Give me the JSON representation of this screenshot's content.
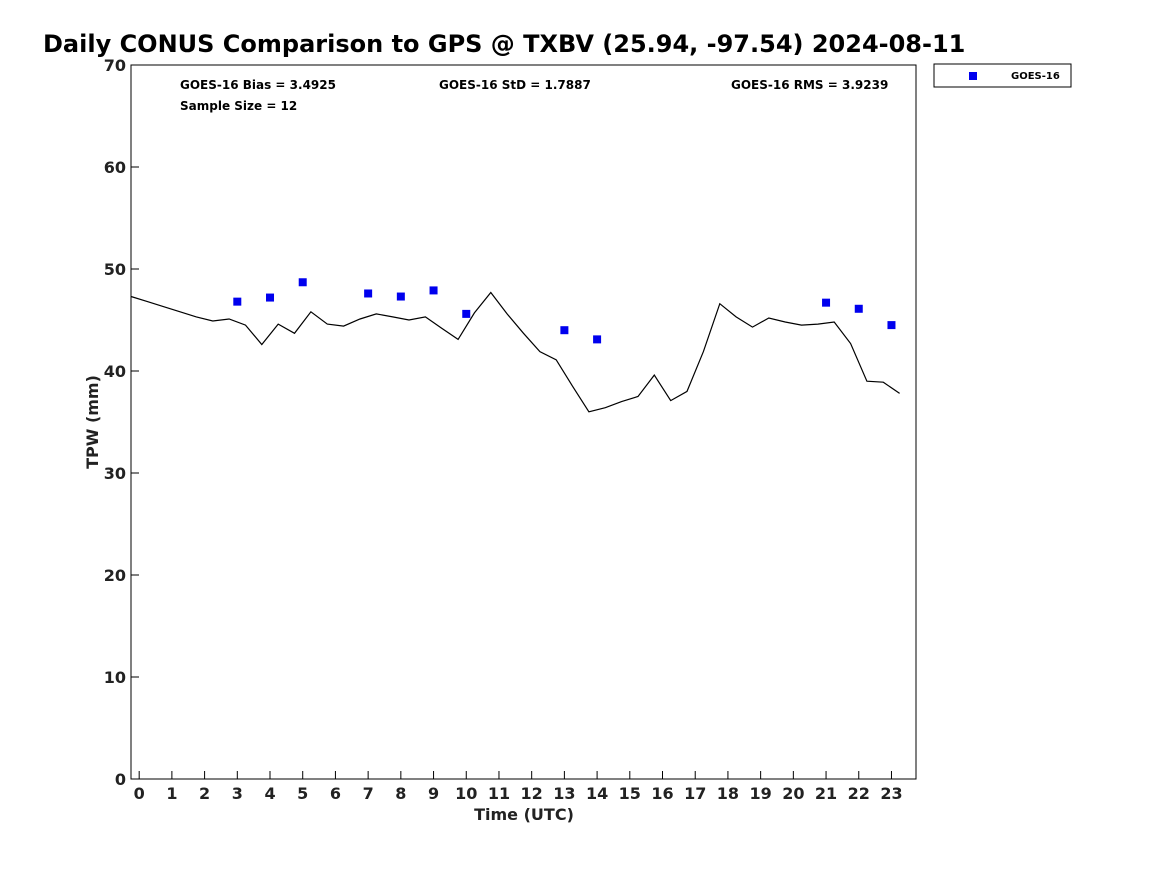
{
  "chart_data": {
    "type": "line",
    "title": "Daily CONUS Comparison to GPS @ TXBV (25.94, -97.54) 2024-08-11",
    "xlabel": "Time (UTC)",
    "ylabel": "TPW (mm)",
    "xlim": [
      -0.25,
      23.75
    ],
    "ylim": [
      0,
      70
    ],
    "x_ticks": [
      0,
      1,
      2,
      3,
      4,
      5,
      6,
      7,
      8,
      9,
      10,
      11,
      12,
      13,
      14,
      15,
      16,
      17,
      18,
      19,
      20,
      21,
      22,
      23
    ],
    "y_ticks": [
      0,
      10,
      20,
      30,
      40,
      50,
      60,
      70
    ],
    "grid": false,
    "legend_position": "top-right (outside plot)",
    "stats": {
      "bias": "GOES-16 Bias = 3.4925",
      "std": "GOES-16 StD = 1.7887",
      "rms": "GOES-16 RMS = 3.9239",
      "sample": "Sample Size = 12"
    },
    "series": [
      {
        "style": "line",
        "color": "#000000",
        "x": [
          -0.25,
          0.25,
          0.75,
          1.25,
          1.75,
          2.25,
          2.75,
          3.25,
          3.75,
          4.25,
          4.75,
          5.25,
          5.75,
          6.25,
          6.75,
          7.25,
          7.75,
          8.25,
          8.75,
          9.25,
          9.75,
          10.25,
          10.75,
          11.25,
          11.75,
          12.25,
          12.75,
          13.25,
          13.75,
          14.25,
          14.75,
          15.25,
          15.75,
          16.25,
          16.75,
          17.25,
          17.75,
          18.25,
          18.75,
          19.25,
          19.75,
          20.25,
          20.75,
          21.25,
          21.75,
          22.25,
          22.75,
          23.25
        ],
        "y": [
          47.3,
          46.8,
          46.3,
          45.8,
          45.3,
          44.9,
          45.1,
          44.5,
          42.6,
          44.6,
          43.7,
          45.8,
          44.6,
          44.4,
          45.1,
          45.6,
          45.3,
          45.0,
          45.3,
          44.2,
          43.1,
          45.7,
          47.7,
          45.6,
          43.7,
          41.9,
          41.1,
          38.5,
          36.0,
          36.4,
          37.0,
          37.5,
          39.6,
          37.1,
          38.0,
          41.9,
          46.6,
          45.3,
          44.3,
          45.2,
          44.8,
          44.5,
          44.6,
          44.8,
          42.7,
          39.0,
          38.9,
          37.8
        ]
      },
      {
        "name": "GOES-16",
        "style": "marker",
        "color": "#0000ee",
        "x": [
          3,
          4,
          5,
          7,
          8,
          9,
          10,
          13,
          14,
          21,
          22,
          23
        ],
        "y": [
          46.8,
          47.2,
          48.7,
          47.6,
          47.3,
          47.9,
          45.6,
          44.0,
          43.1,
          46.7,
          46.1,
          44.5
        ]
      }
    ]
  }
}
